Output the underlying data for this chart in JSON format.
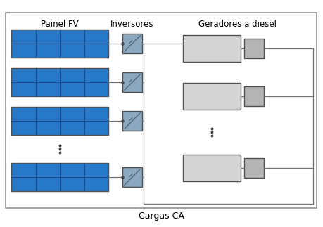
{
  "bg_color": "#ffffff",
  "border_color": "#909090",
  "label_painel": "Painel FV",
  "label_inversores": "Inversores",
  "label_geradores": "Geradores a diesel",
  "label_cargas": "Cargas CA",
  "panel_color": "#2878c8",
  "panel_line_color": "#1a5090",
  "panel_border_color": "#505050",
  "inversor_color": "#8aa8c0",
  "inversor_line_color": "#506880",
  "gen_main_color": "#d4d4d4",
  "gen_small_color": "#b4b4b4",
  "line_color": "#707070",
  "dot_color": "#404040"
}
